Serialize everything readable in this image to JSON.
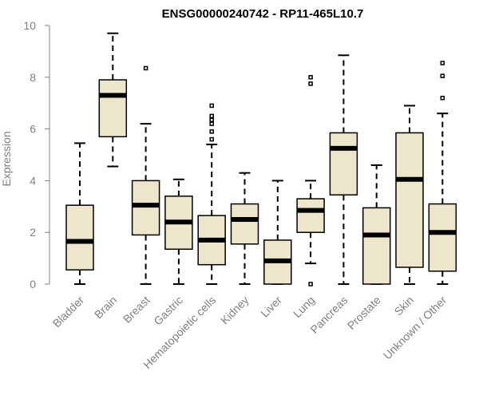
{
  "chart_data": {
    "type": "boxplot",
    "title": "ENSG00000240742 - RP11-465L10.7",
    "xlabel": "",
    "ylabel": "Expression",
    "ylim": [
      0,
      10
    ],
    "yticks": [
      0,
      2,
      4,
      6,
      8,
      10
    ],
    "box_fill": "#ede6cc",
    "box_stroke": "#000000",
    "median_color": "#000000",
    "axis_color": "#808080",
    "categories": [
      "Bladder",
      "Brain",
      "Breast",
      "Gastric",
      "Hematopoietic cells",
      "Kidney",
      "Liver",
      "Lung",
      "Pancreas",
      "Prostate",
      "Skin",
      "Unknown / Other"
    ],
    "boxes": [
      {
        "category": "Bladder",
        "whisker_low": 0,
        "q1": 0.55,
        "median": 1.65,
        "q3": 3.05,
        "whisker_high": 5.45,
        "outliers": []
      },
      {
        "category": "Brain",
        "whisker_low": 4.55,
        "q1": 5.7,
        "median": 7.3,
        "q3": 7.9,
        "whisker_high": 9.7,
        "outliers": []
      },
      {
        "category": "Breast",
        "whisker_low": 0,
        "q1": 1.9,
        "median": 3.05,
        "q3": 4.0,
        "whisker_high": 6.2,
        "outliers": [
          8.35
        ]
      },
      {
        "category": "Gastric",
        "whisker_low": 0,
        "q1": 1.35,
        "median": 2.4,
        "q3": 3.4,
        "whisker_high": 4.05,
        "outliers": []
      },
      {
        "category": "Hematopoietic cells",
        "whisker_low": 0,
        "q1": 0.75,
        "median": 1.7,
        "q3": 2.65,
        "whisker_high": 5.4,
        "outliers": [
          5.6,
          5.9,
          6.2,
          6.35,
          6.5,
          6.9
        ]
      },
      {
        "category": "Kidney",
        "whisker_low": 0,
        "q1": 1.55,
        "median": 2.5,
        "q3": 3.1,
        "whisker_high": 4.3,
        "outliers": []
      },
      {
        "category": "Liver",
        "whisker_low": 0,
        "q1": 0,
        "median": 0.9,
        "q3": 1.7,
        "whisker_high": 4.0,
        "outliers": []
      },
      {
        "category": "Lung",
        "whisker_low": 0.8,
        "q1": 2.0,
        "median": 2.85,
        "q3": 3.3,
        "whisker_high": 4.0,
        "outliers": [
          0,
          7.75,
          8.0
        ]
      },
      {
        "category": "Pancreas",
        "whisker_low": 0,
        "q1": 3.45,
        "median": 5.25,
        "q3": 5.85,
        "whisker_high": 8.85,
        "outliers": []
      },
      {
        "category": "Prostate",
        "whisker_low": 0,
        "q1": 0,
        "median": 1.9,
        "q3": 2.95,
        "whisker_high": 4.6,
        "outliers": []
      },
      {
        "category": "Skin",
        "whisker_low": 0,
        "q1": 0.65,
        "median": 4.05,
        "q3": 5.85,
        "whisker_high": 6.9,
        "outliers": []
      },
      {
        "category": "Unknown / Other",
        "whisker_low": 0,
        "q1": 0.5,
        "median": 2.0,
        "q3": 3.1,
        "whisker_high": 6.6,
        "outliers": [
          7.2,
          8.05,
          8.55
        ]
      }
    ]
  }
}
